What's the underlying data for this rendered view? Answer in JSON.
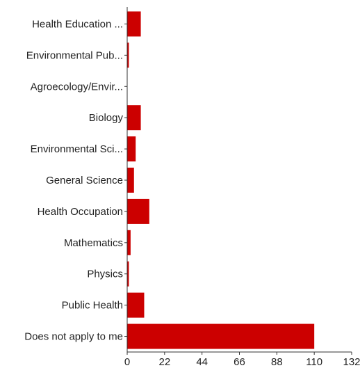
{
  "chart_data": {
    "type": "bar",
    "orientation": "horizontal",
    "categories": [
      "Health Education ...",
      "Environmental Pub...",
      "Agroecology/Envir...",
      "Biology",
      "Environmental Sci...",
      "General Science",
      "Health Occupation",
      "Mathematics",
      "Physics",
      "Public Health",
      "Does not apply to me"
    ],
    "values": [
      8,
      1,
      0,
      8,
      5,
      4,
      13,
      2,
      1,
      10,
      110
    ],
    "xlim": [
      0,
      132
    ],
    "xticks": [
      0,
      22,
      44,
      66,
      88,
      110,
      132
    ],
    "bar_color": "#cc0000",
    "grid": false,
    "legend": "none"
  }
}
